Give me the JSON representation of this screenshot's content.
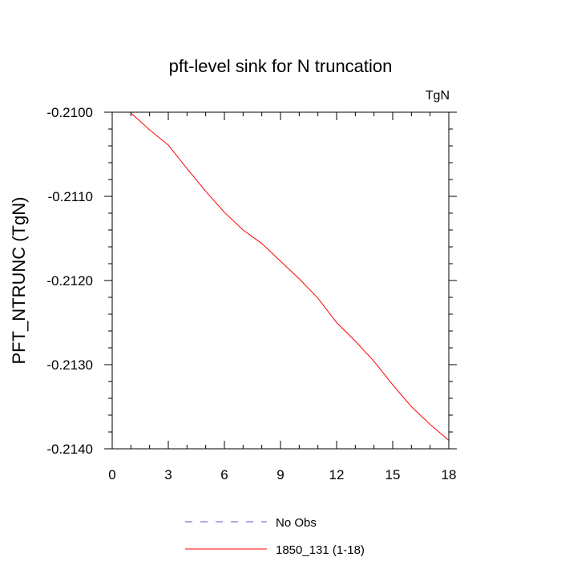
{
  "chart_data": {
    "type": "line",
    "title": "pft-level sink for N truncation",
    "units_label": "TgN",
    "ylabel": "PFT_NTRUNC  (TgN)",
    "xlabel": "",
    "xlim": [
      0,
      18
    ],
    "ylim": [
      -0.214,
      -0.21
    ],
    "x_ticks": [
      0,
      3,
      6,
      9,
      12,
      15,
      18
    ],
    "x_tick_labels": [
      "0",
      "3",
      "6",
      "9",
      "12",
      "15",
      "18"
    ],
    "y_ticks": [
      -0.21,
      -0.211,
      -0.212,
      -0.213,
      -0.214
    ],
    "y_tick_labels": [
      "-0.2100",
      "-0.2110",
      "-0.2120",
      "-0.2130",
      "-0.2140"
    ],
    "grid": false,
    "series": [
      {
        "name": "No Obs",
        "color": "#5555dd",
        "dash": "dashed",
        "x": [],
        "y": []
      },
      {
        "name": "1850_131 (1-18)",
        "color": "#ff0000",
        "dash": "solid",
        "x": [
          1,
          2,
          3,
          4,
          5,
          6,
          7,
          8,
          9,
          10,
          11,
          12,
          13,
          14,
          15,
          16,
          17,
          18
        ],
        "y": [
          -0.21001,
          -0.21021,
          -0.21039,
          -0.21067,
          -0.21094,
          -0.21119,
          -0.2114,
          -0.21156,
          -0.21177,
          -0.21198,
          -0.21221,
          -0.2125,
          -0.21272,
          -0.21296,
          -0.21324,
          -0.2135,
          -0.21371,
          -0.2139
        ]
      }
    ],
    "legend_position": "bottom-center"
  }
}
